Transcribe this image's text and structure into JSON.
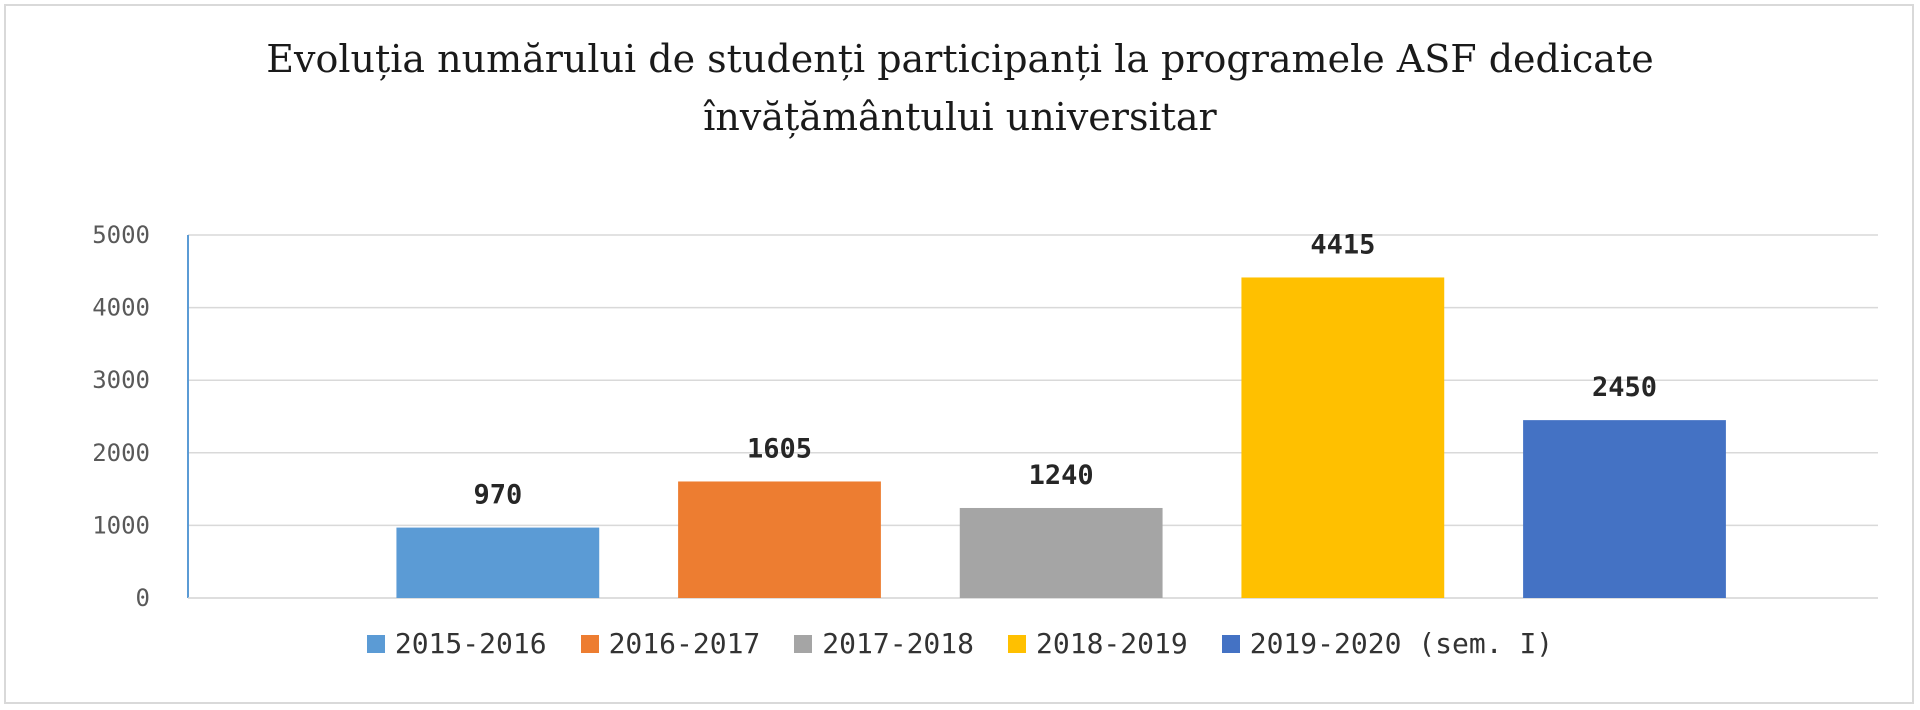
{
  "chart_data": {
    "type": "bar",
    "title_lines": [
      "Evoluția numărului de studenți participanți la programele ASF dedicate",
      "învățământului universitar"
    ],
    "categories": [
      "2015-2016",
      "2016-2017",
      "2017-2018",
      "2018-2019",
      "2019-2020 (sem. I)"
    ],
    "values": [
      970,
      1605,
      1240,
      4415,
      2450
    ],
    "data_labels": [
      "970",
      "1605",
      "1240",
      "4415",
      "2450"
    ],
    "colors": [
      "#5b9bd5",
      "#ed7d31",
      "#a5a5a5",
      "#ffc000",
      "#4472c4"
    ],
    "ylim": [
      0,
      5000
    ],
    "yticks": [
      0,
      1000,
      2000,
      3000,
      4000,
      5000
    ],
    "ytick_labels": [
      "0",
      "1000",
      "2000",
      "3000",
      "4000",
      "5000"
    ],
    "grid": true,
    "legend_position": "bottom",
    "xlabel": "",
    "ylabel": ""
  }
}
